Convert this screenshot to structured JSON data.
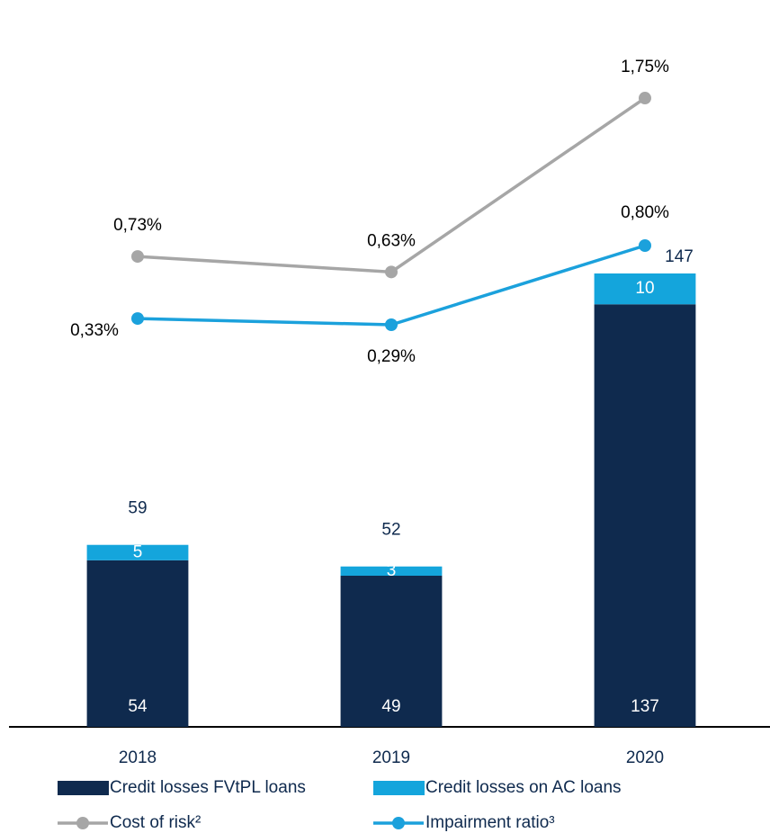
{
  "chart_data": {
    "type": "bar",
    "categories": [
      "2018",
      "2019",
      "2020"
    ],
    "stacked": true,
    "ylim": [
      0,
      224
    ],
    "y2lim": [
      -2.3,
      2.15
    ],
    "series": [
      {
        "name": "Credit losses FVtPL loans",
        "color": "#0f2a4e",
        "values": [
          54,
          49,
          137
        ]
      },
      {
        "name": "Credit losses on AC loans",
        "color": "#14a5dc",
        "values": [
          5,
          3,
          10
        ]
      },
      {
        "name": "Cost of risk²",
        "type": "line",
        "axis": "y2",
        "color": "#a6a6a6",
        "values": [
          0.73,
          0.63,
          1.75
        ],
        "value_labels": [
          "0,73%",
          "0,63%",
          "1,75%"
        ]
      },
      {
        "name": "Impairment ratio³",
        "type": "line",
        "axis": "y2",
        "color": "#1ba1dc",
        "values": [
          0.33,
          0.29,
          0.8
        ],
        "value_labels": [
          "0,33%",
          "0,29%",
          "0,80%"
        ]
      }
    ],
    "totals": [
      59,
      52,
      147
    ]
  }
}
